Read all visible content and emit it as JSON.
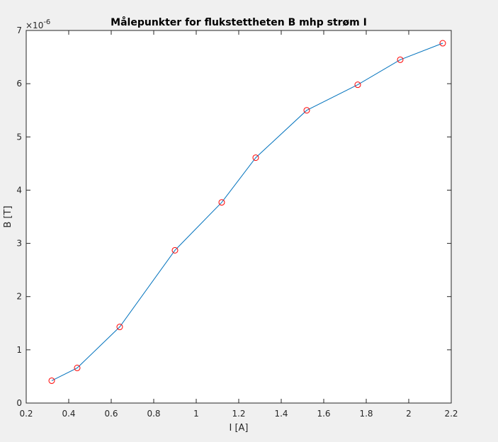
{
  "chart_data": {
    "type": "line",
    "title": "Målepunkter for flukstettheten B mhp strøm I",
    "xlabel": "I [A]",
    "ylabel": "B [T]",
    "xlim": [
      0.2,
      2.2
    ],
    "ylim": [
      0,
      7
    ],
    "y_exponent_label": "×10",
    "y_exponent_power": "-6",
    "x_ticks": [
      "0.2",
      "0.4",
      "0.6",
      "0.8",
      "1",
      "1.2",
      "1.4",
      "1.6",
      "1.8",
      "2",
      "2.2"
    ],
    "y_ticks": [
      "0",
      "1",
      "2",
      "3",
      "4",
      "5",
      "6",
      "7"
    ],
    "grid": false,
    "line_color": "#0072bd",
    "marker_color": "#ff0000",
    "marker": "circle",
    "series": [
      {
        "x": [
          0.32,
          0.44,
          0.64,
          0.9,
          1.12,
          1.28,
          1.52,
          1.76,
          1.96,
          2.16
        ],
        "y": [
          0.42,
          0.66,
          1.43,
          2.87,
          3.77,
          4.61,
          5.5,
          5.98,
          6.45,
          6.76
        ]
      }
    ]
  }
}
